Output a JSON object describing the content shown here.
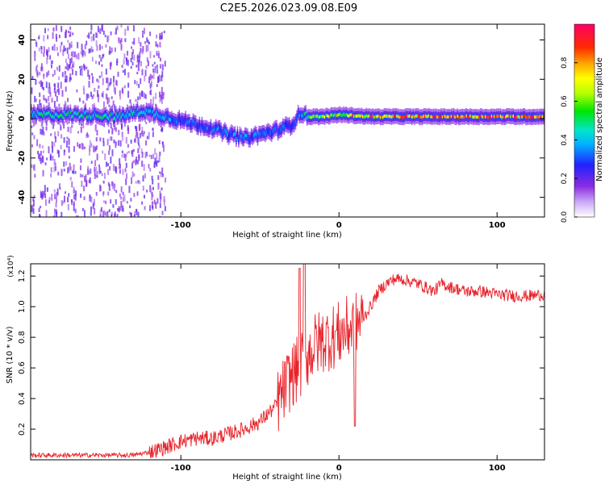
{
  "title": "C2E5.2026.023.09.08.E09",
  "chart_data": [
    {
      "type": "heatmap",
      "title": "C2E5.2026.023.09.08.E09",
      "xlabel": "Height of straight line (km)",
      "ylabel": "Frequency (Hz)",
      "xlim": [
        -195,
        130
      ],
      "ylim": [
        -50,
        48
      ],
      "xticks": [
        -100,
        0,
        100
      ],
      "xtick_labels": [
        "-100",
        "0",
        "100"
      ],
      "yticks": [
        -40,
        -20,
        0,
        20,
        40
      ],
      "ytick_labels": [
        "-40",
        "-20",
        "0",
        "20",
        "40"
      ],
      "colorbar": {
        "label": "Normalized spectral amplitude",
        "range": [
          0,
          1
        ],
        "ticks": [
          0.0,
          0.2,
          0.4,
          0.6,
          0.8
        ],
        "tick_labels": [
          "0.0",
          "0.2",
          "0.4",
          "0.6",
          "0.8"
        ]
      },
      "ridge": {
        "x": [
          -195,
          -180,
          -160,
          -140,
          -125,
          -110,
          -100,
          -90,
          -80,
          -70,
          -60,
          -50,
          -40,
          -30,
          -25,
          -20,
          -10,
          0,
          10,
          20,
          40,
          60,
          80,
          100,
          130
        ],
        "freq": [
          2,
          2,
          2,
          1,
          4,
          1,
          -1,
          -3,
          -5,
          -8,
          -10,
          -8,
          -6,
          -3,
          3,
          1,
          1,
          2,
          1.5,
          1,
          1,
          1,
          1,
          1,
          1
        ],
        "amplitude": [
          0.45,
          0.45,
          0.45,
          0.45,
          0.4,
          0.35,
          0.3,
          0.3,
          0.3,
          0.35,
          0.35,
          0.3,
          0.3,
          0.25,
          0.35,
          0.5,
          0.6,
          0.65,
          0.7,
          0.75,
          0.8,
          0.85,
          0.85,
          0.85,
          0.85
        ]
      }
    },
    {
      "type": "line",
      "xlabel": "Height of straight line (km)",
      "ylabel": "SNR (10 * v/v)",
      "y_scale_label": "(x10⁴)",
      "xlim": [
        -195,
        130
      ],
      "ylim": [
        0,
        1.28
      ],
      "xticks": [
        -100,
        0,
        100
      ],
      "xtick_labels": [
        "-100",
        "0",
        "100"
      ],
      "yticks": [
        0.2,
        0.4,
        0.6,
        0.8,
        1.0,
        1.2
      ],
      "ytick_labels": [
        "0.2",
        "0.4",
        "0.6",
        "0.8",
        "1.0",
        "1.2"
      ],
      "series": [
        {
          "name": "SNR",
          "color": "#e8232a",
          "x": [
            -195,
            -170,
            -150,
            -130,
            -120,
            -110,
            -100,
            -90,
            -80,
            -70,
            -60,
            -50,
            -40,
            -35,
            -30,
            -25,
            -20,
            -15,
            -10,
            -5,
            0,
            5,
            10,
            15,
            20,
            25,
            30,
            35,
            40,
            50,
            60,
            65,
            70,
            80,
            90,
            100,
            110,
            120,
            130
          ],
          "y": [
            0.03,
            0.03,
            0.03,
            0.03,
            0.05,
            0.08,
            0.12,
            0.14,
            0.14,
            0.17,
            0.2,
            0.25,
            0.35,
            0.45,
            0.55,
            0.6,
            0.68,
            0.75,
            0.78,
            0.8,
            0.82,
            0.85,
            0.88,
            0.92,
            1.0,
            1.1,
            1.15,
            1.18,
            1.18,
            1.15,
            1.1,
            1.15,
            1.13,
            1.1,
            1.1,
            1.08,
            1.07,
            1.07,
            1.08
          ],
          "spikes": [
            {
              "x": -25,
              "y": 1.25
            },
            {
              "x": -22,
              "y": 1.28
            },
            {
              "x": 10,
              "y": 0.22
            }
          ]
        }
      ]
    }
  ]
}
